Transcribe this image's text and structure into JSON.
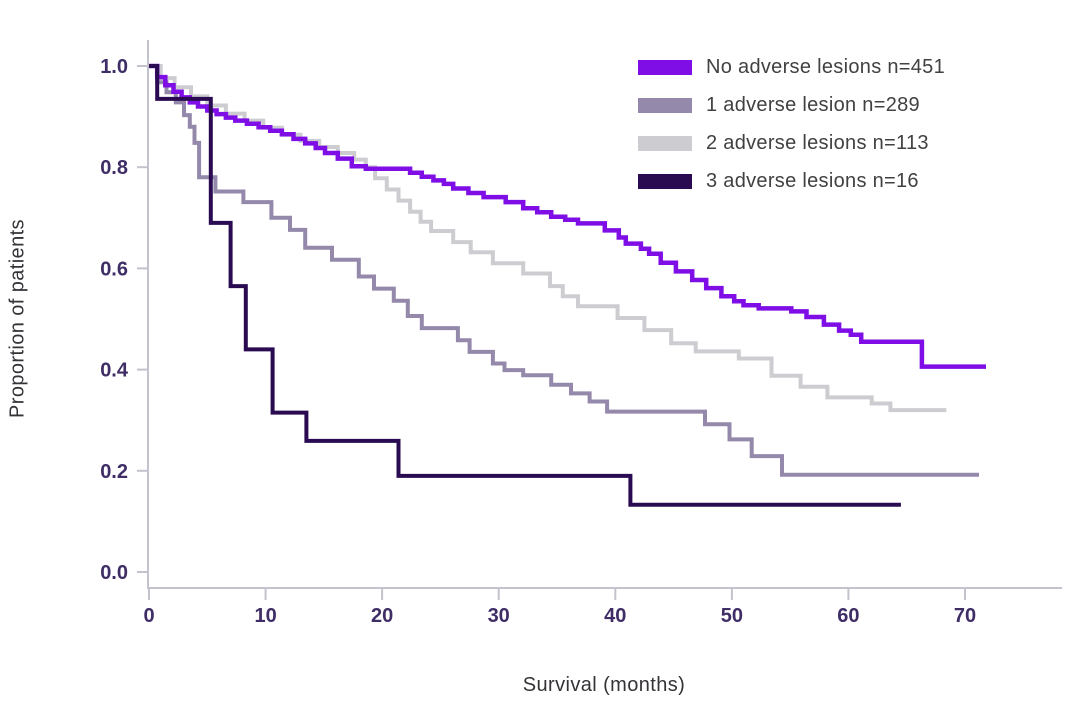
{
  "colors": {
    "background": "#ffffff",
    "axis_line": "#c4c2cc",
    "tick_mark": "#c4c2cc",
    "tick_label": "#3f2d66",
    "axis_title": "#363338",
    "legend_text": "#414141"
  },
  "chart_data": {
    "type": "line",
    "subtype": "kaplan-meier-step",
    "title": "",
    "xlabel": "Survival (months)",
    "ylabel": "Proportion of patients",
    "xlim": [
      0,
      78
    ],
    "ylim": [
      0.0,
      1.0
    ],
    "grid": false,
    "legend_position": "top-right",
    "xticks": [
      {
        "value": 0,
        "label": "0"
      },
      {
        "value": 10,
        "label": "10"
      },
      {
        "value": 20,
        "label": "20"
      },
      {
        "value": 30,
        "label": "30"
      },
      {
        "value": 40,
        "label": "40"
      },
      {
        "value": 50,
        "label": "50"
      },
      {
        "value": 60,
        "label": "60"
      },
      {
        "value": 70,
        "label": "70"
      }
    ],
    "yticks": [
      {
        "value": 0.0,
        "label": "0.0"
      },
      {
        "value": 0.2,
        "label": "0.2"
      },
      {
        "value": 0.4,
        "label": "0.4"
      },
      {
        "value": 0.6,
        "label": "0.6"
      },
      {
        "value": 0.8,
        "label": "0.8"
      },
      {
        "value": 1.0,
        "label": "1.0"
      }
    ],
    "series": [
      {
        "name": "no-adverse-lesions",
        "label": "No adverse lesions n=451",
        "n": 451,
        "color": "#7f0de6",
        "end": 71.8,
        "points": [
          [
            0,
            1.0
          ],
          [
            0.7,
            0.978
          ],
          [
            1.4,
            0.962
          ],
          [
            2.1,
            0.949
          ],
          [
            2.8,
            0.938
          ],
          [
            3.5,
            0.928
          ],
          [
            4.2,
            0.92
          ],
          [
            5.0,
            0.912
          ],
          [
            5.8,
            0.905
          ],
          [
            6.6,
            0.898
          ],
          [
            7.4,
            0.892
          ],
          [
            8.4,
            0.886
          ],
          [
            9.4,
            0.879
          ],
          [
            10.4,
            0.872
          ],
          [
            11.4,
            0.865
          ],
          [
            12.4,
            0.856
          ],
          [
            13.4,
            0.847
          ],
          [
            14.3,
            0.838
          ],
          [
            15.1,
            0.828
          ],
          [
            16.2,
            0.817
          ],
          [
            17.4,
            0.802
          ],
          [
            18.6,
            0.797
          ],
          [
            22.4,
            0.789
          ],
          [
            23.4,
            0.781
          ],
          [
            24.4,
            0.774
          ],
          [
            25.3,
            0.767
          ],
          [
            26.1,
            0.758
          ],
          [
            27.4,
            0.749
          ],
          [
            28.7,
            0.741
          ],
          [
            30.6,
            0.731
          ],
          [
            32.1,
            0.719
          ],
          [
            33.3,
            0.711
          ],
          [
            34.5,
            0.702
          ],
          [
            35.7,
            0.696
          ],
          [
            36.8,
            0.689
          ],
          [
            39.1,
            0.675
          ],
          [
            40.3,
            0.661
          ],
          [
            40.9,
            0.649
          ],
          [
            42.2,
            0.639
          ],
          [
            42.9,
            0.629
          ],
          [
            43.9,
            0.611
          ],
          [
            45.2,
            0.594
          ],
          [
            46.6,
            0.577
          ],
          [
            47.8,
            0.561
          ],
          [
            49.1,
            0.545
          ],
          [
            50.2,
            0.535
          ],
          [
            51.0,
            0.527
          ],
          [
            52.3,
            0.521
          ],
          [
            55.1,
            0.515
          ],
          [
            56.4,
            0.504
          ],
          [
            57.9,
            0.489
          ],
          [
            59.2,
            0.477
          ],
          [
            60.2,
            0.469
          ],
          [
            61.1,
            0.455
          ],
          [
            66.3,
            0.406
          ]
        ]
      },
      {
        "name": "one-adverse-lesion",
        "label": "1 adverse lesion n=289",
        "n": 289,
        "color": "#9489ab",
        "end": 71.2,
        "points": [
          [
            0,
            1.0
          ],
          [
            0.7,
            0.968
          ],
          [
            1.5,
            0.948
          ],
          [
            2.3,
            0.928
          ],
          [
            3.0,
            0.903
          ],
          [
            3.5,
            0.88
          ],
          [
            3.9,
            0.848
          ],
          [
            4.3,
            0.78
          ],
          [
            5.7,
            0.752
          ],
          [
            8.1,
            0.731
          ],
          [
            10.5,
            0.7
          ],
          [
            12.1,
            0.676
          ],
          [
            13.4,
            0.641
          ],
          [
            15.7,
            0.617
          ],
          [
            18.0,
            0.584
          ],
          [
            19.3,
            0.56
          ],
          [
            21.0,
            0.536
          ],
          [
            22.2,
            0.506
          ],
          [
            23.4,
            0.482
          ],
          [
            26.5,
            0.458
          ],
          [
            27.5,
            0.435
          ],
          [
            29.5,
            0.412
          ],
          [
            30.5,
            0.399
          ],
          [
            32.1,
            0.389
          ],
          [
            34.5,
            0.37
          ],
          [
            36.2,
            0.353
          ],
          [
            37.8,
            0.337
          ],
          [
            39.3,
            0.317
          ],
          [
            47.7,
            0.292
          ],
          [
            49.8,
            0.262
          ],
          [
            51.7,
            0.229
          ],
          [
            54.3,
            0.192
          ]
        ]
      },
      {
        "name": "two-adverse-lesions",
        "label": "2 adverse lesions n=113",
        "n": 113,
        "color": "#cdcdd1",
        "end": 68.4,
        "points": [
          [
            0,
            1.0
          ],
          [
            1.0,
            0.976
          ],
          [
            2.2,
            0.958
          ],
          [
            3.6,
            0.94
          ],
          [
            5.0,
            0.922
          ],
          [
            6.6,
            0.906
          ],
          [
            8.2,
            0.892
          ],
          [
            9.8,
            0.878
          ],
          [
            11.4,
            0.864
          ],
          [
            13.0,
            0.852
          ],
          [
            14.6,
            0.84
          ],
          [
            16.2,
            0.828
          ],
          [
            17.6,
            0.815
          ],
          [
            18.6,
            0.8
          ],
          [
            19.4,
            0.778
          ],
          [
            20.4,
            0.756
          ],
          [
            21.4,
            0.734
          ],
          [
            22.4,
            0.712
          ],
          [
            23.3,
            0.692
          ],
          [
            24.2,
            0.674
          ],
          [
            26.1,
            0.652
          ],
          [
            27.6,
            0.632
          ],
          [
            29.5,
            0.61
          ],
          [
            32.1,
            0.59
          ],
          [
            34.4,
            0.565
          ],
          [
            35.5,
            0.545
          ],
          [
            36.8,
            0.525
          ],
          [
            40.2,
            0.502
          ],
          [
            42.5,
            0.478
          ],
          [
            44.8,
            0.452
          ],
          [
            46.9,
            0.436
          ],
          [
            50.6,
            0.422
          ],
          [
            53.4,
            0.388
          ],
          [
            55.9,
            0.366
          ],
          [
            58.2,
            0.345
          ],
          [
            62.0,
            0.333
          ],
          [
            63.6,
            0.32
          ]
        ]
      },
      {
        "name": "three-adverse-lesions",
        "label": "3 adverse lesions n=16",
        "n": 16,
        "color": "#2a0b52",
        "end": 64.5,
        "points": [
          [
            0,
            1.0
          ],
          [
            0.7,
            0.935
          ],
          [
            5.3,
            0.69
          ],
          [
            7.0,
            0.565
          ],
          [
            8.3,
            0.44
          ],
          [
            10.6,
            0.315
          ],
          [
            13.5,
            0.259
          ],
          [
            21.4,
            0.19
          ],
          [
            41.3,
            0.133
          ]
        ]
      }
    ]
  }
}
